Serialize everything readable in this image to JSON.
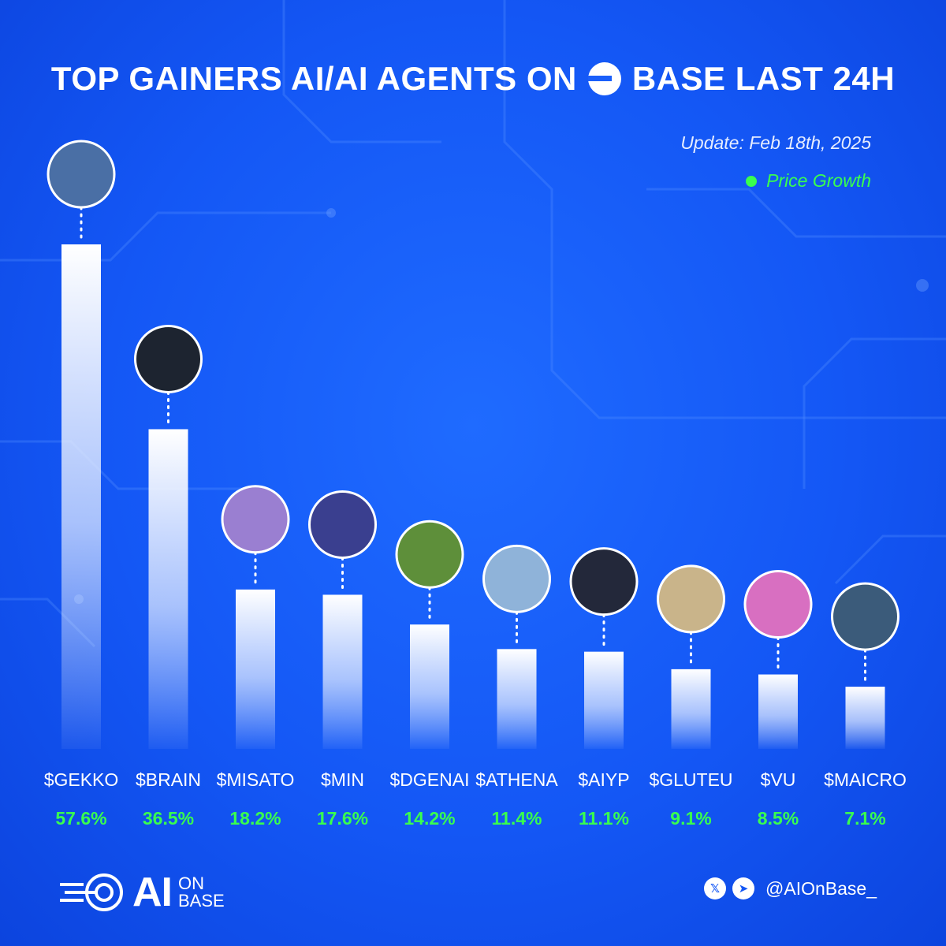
{
  "header": {
    "title_prefix": "TOP GAINERS AI/AI AGENTS ON",
    "title_suffix": "BASE LAST 24H",
    "update": "Update: Feb 18th, 2025",
    "legend_label": "Price Growth"
  },
  "chart_data": {
    "type": "bar",
    "title": "TOP GAINERS AI/AI AGENTS ON BASE LAST 24H",
    "categories": [
      "$GEKKO",
      "$BRAIN",
      "$MISATO",
      "$MIN",
      "$DGENAI",
      "$ATHENA",
      "$AIYP",
      "$GLUTEU",
      "$VU",
      "$MAICRO"
    ],
    "series": [
      {
        "name": "Price Growth",
        "values": [
          57.6,
          36.5,
          18.2,
          17.6,
          14.2,
          11.4,
          11.1,
          9.1,
          8.5,
          7.1
        ]
      }
    ],
    "value_labels": [
      "57.6%",
      "36.5%",
      "18.2%",
      "17.6%",
      "14.2%",
      "11.4%",
      "11.1%",
      "9.1%",
      "8.5%",
      "7.1%"
    ],
    "ylim": [
      0,
      60
    ],
    "grid": false,
    "legend_position": "top-right"
  },
  "colors": {
    "background": "#1457f5",
    "bar_top": "#ffffff",
    "value_label": "#39ff4f",
    "avatar_palette": [
      "#4a6fa5",
      "#1d2430",
      "#9a7fd1",
      "#3a3f8f",
      "#5e8f3a",
      "#8fb3d9",
      "#23283a",
      "#c9b48a",
      "#d86fc1",
      "#3b5b7a"
    ]
  },
  "footer": {
    "logo_ai": "AI",
    "logo_on": "ON",
    "logo_base": "BASE",
    "x_icon": "x-icon",
    "telegram_icon": "telegram-icon",
    "handle": "@AIOnBase_"
  }
}
